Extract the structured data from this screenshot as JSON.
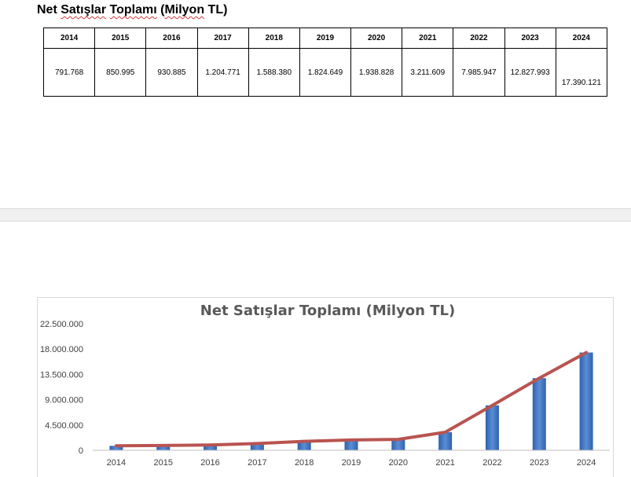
{
  "document": {
    "title_parts": [
      "Net ",
      "Satışlar",
      " ",
      "Toplamı",
      " (",
      "Milyon",
      " TL)"
    ]
  },
  "table": {
    "headers": [
      "2014",
      "2015",
      "2016",
      "2017",
      "2018",
      "2019",
      "2020",
      "2021",
      "2022",
      "2023",
      "2024"
    ],
    "values": [
      "791.768",
      "850.995",
      "930.885",
      "1.204.771",
      "1.588.380",
      "1.824.649",
      "1.938.828",
      "3.211.609",
      "7.985.947",
      "12.827.993",
      "17.390.121"
    ]
  },
  "chart_data": {
    "type": "bar",
    "title": "Net Satışlar Toplamı (Milyon TL)",
    "categories": [
      "2014",
      "2015",
      "2016",
      "2017",
      "2018",
      "2019",
      "2020",
      "2021",
      "2022",
      "2023",
      "2024"
    ],
    "values": [
      791768,
      850995,
      930885,
      1204771,
      1588380,
      1824649,
      1938828,
      3211609,
      7985947,
      12827993,
      17390121
    ],
    "overlay_line": true,
    "ylim": [
      0,
      22500000
    ],
    "yticks": [
      0,
      4500000,
      9000000,
      13500000,
      18000000,
      22500000
    ],
    "ytick_labels": [
      "0",
      "4.500.000",
      "9.000.000",
      "13.500.000",
      "18.000.000",
      "22.500.000"
    ],
    "grid": false,
    "legend": "none",
    "colors": {
      "bar": "#2e62ad",
      "bar_light": "#5b8dd6",
      "line": "#b85450"
    }
  }
}
